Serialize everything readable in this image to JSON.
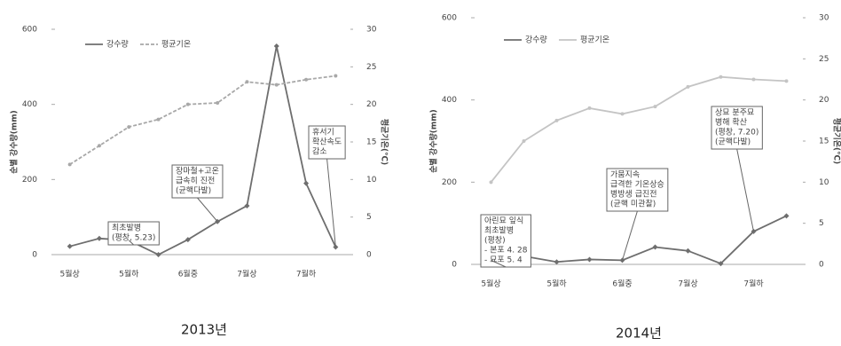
{
  "chart_data": [
    {
      "type": "line",
      "caption": "2013년",
      "y_label": "순별 강수량(mm)",
      "y2_label": "평균기온(℃)",
      "categories": [
        "5월상",
        null,
        "5월하",
        null,
        "6월중",
        null,
        "7월상",
        null,
        "7월하",
        null
      ],
      "series": [
        {
          "name": "강수량",
          "color": "#6e6e6e",
          "dash": false,
          "values": [
            22,
            43,
            38,
            0,
            40,
            88,
            130,
            555,
            190,
            20
          ]
        },
        {
          "name": "평균기온",
          "color": "#a8a8a8",
          "dash": true,
          "axis": "y2",
          "values": [
            12,
            14.5,
            17,
            18,
            20,
            20.2,
            23,
            22.6,
            23.3,
            23.8
          ]
        }
      ],
      "ylim": [
        0,
        600
      ],
      "yticks": [
        0,
        200,
        400,
        600
      ],
      "y2lim": [
        0,
        30
      ],
      "y2ticks": [
        0,
        5,
        10,
        15,
        20,
        25,
        30
      ],
      "annotations": [
        [
          "최초발병",
          "(평창, 5.23)"
        ],
        [
          "장마철+고온",
          "급속히 진전",
          "(균핵다발)"
        ],
        [
          "휴서기",
          "확산속도",
          "감소"
        ]
      ]
    },
    {
      "type": "line",
      "caption": "2014년",
      "y_label": "순별 강수량(mm)",
      "y2_label": "평균기온(℃)",
      "categories": [
        "5월상",
        null,
        "5월하",
        null,
        "6월중",
        null,
        "7월상",
        null,
        "7월하",
        null
      ],
      "series": [
        {
          "name": "강수량",
          "color": "#6e6e6e",
          "dash": false,
          "values": [
            10,
            20,
            6,
            12,
            10,
            42,
            33,
            2,
            80,
            118
          ]
        },
        {
          "name": "평균기온",
          "color": "#c4c4c4",
          "dash": false,
          "axis": "y2",
          "values": [
            10,
            15,
            17.5,
            19,
            18.3,
            19.2,
            21.6,
            22.8,
            22.5,
            22.3
          ]
        }
      ],
      "ylim": [
        0,
        600
      ],
      "yticks": [
        0,
        200,
        400,
        600
      ],
      "y2lim": [
        0,
        30
      ],
      "y2ticks": [
        0,
        5,
        10,
        15,
        20,
        25,
        30
      ],
      "annotations": [
        [
          "아린묘 잎식",
          "최초발병",
          "(평창)",
          "- 본포 4. 28",
          "- 묘포 5. 4"
        ],
        [
          "가뭄지속",
          "급격한 기온상승",
          "병방생 급진전",
          "(균핵 미관찰)"
        ],
        [
          "상묘 분주묘",
          "병해 확산",
          "(평창, 7.20)",
          "(균핵다발)"
        ]
      ]
    }
  ]
}
